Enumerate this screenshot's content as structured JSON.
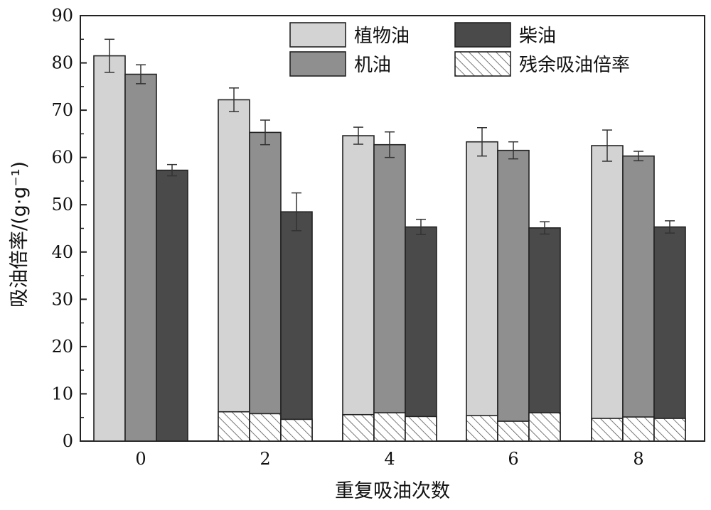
{
  "chart_data": {
    "type": "bar",
    "xlabel": "重复吸油次数",
    "ylabel": "吸油倍率/(g·g⁻¹)",
    "ylim": [
      0,
      90
    ],
    "yticks": [
      0,
      10,
      20,
      30,
      40,
      50,
      60,
      70,
      80,
      90
    ],
    "categories": [
      "0",
      "2",
      "4",
      "6",
      "8"
    ],
    "legend_position": "top-right",
    "series": [
      {
        "name": "植物油",
        "color": "#d3d3d3",
        "values": [
          81.5,
          72.2,
          64.6,
          63.3,
          62.5
        ],
        "errors": [
          3.5,
          2.5,
          1.8,
          3.0,
          3.3
        ],
        "residual": [
          null,
          6.2,
          5.6,
          5.4,
          4.8
        ]
      },
      {
        "name": "机油",
        "color": "#8f8f8f",
        "values": [
          77.6,
          65.3,
          62.7,
          61.5,
          60.3
        ],
        "errors": [
          2.0,
          2.6,
          2.7,
          1.8,
          1.0
        ],
        "residual": [
          null,
          5.8,
          6.0,
          4.2,
          5.1
        ]
      },
      {
        "name": "柴油",
        "color": "#4a4a4a",
        "values": [
          57.3,
          48.5,
          45.3,
          45.1,
          45.3
        ],
        "errors": [
          1.2,
          4.0,
          1.6,
          1.3,
          1.3
        ],
        "residual": [
          null,
          4.6,
          5.2,
          6.0,
          4.8
        ]
      }
    ],
    "residual_series_name": "残余吸油倍率"
  }
}
